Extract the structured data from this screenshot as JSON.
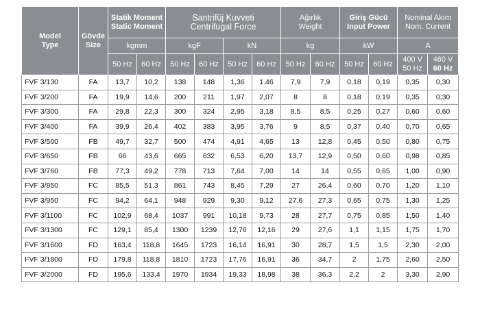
{
  "headers": {
    "model": [
      "Model",
      "Type"
    ],
    "body": [
      "Gövde",
      "Size"
    ],
    "static_moment": [
      "Statik Moment",
      "Static Moment"
    ],
    "centrifugal": [
      "Santrifüj Kuvveti",
      "Centrifugal  Force"
    ],
    "weight": [
      "Ağırlık",
      "Weight"
    ],
    "input_power": [
      "Giriş Gücü",
      "Input  Power"
    ],
    "nominal_current": [
      "Nominal Akım",
      "Nom. Current"
    ]
  },
  "units": [
    "kgmm",
    "kgF",
    "kN",
    "kg",
    "kW",
    "A"
  ],
  "freq": [
    "50 Hz",
    "60 Hz",
    "50 Hz",
    "60 Hz",
    "50 Hz",
    "60 Hz",
    "50 Hz",
    "60 Hz",
    "50 Hz",
    "60 Hz"
  ],
  "voltage": [
    [
      "400 V",
      "50 Hz"
    ],
    [
      "460 V",
      "60 Hz"
    ]
  ],
  "rows": [
    [
      "FVF 3/130",
      "FA",
      "13,7",
      "10,2",
      "138",
      "148",
      "1,36",
      "1.46",
      "7,9",
      "7,9",
      "0,18",
      "0,19",
      "0,35",
      "0,30"
    ],
    [
      "FVF 3/200",
      "FA",
      "19,9",
      "14,6",
      "200",
      "211",
      "1,97",
      "2,07",
      "8",
      "8",
      "0,18",
      "0,19",
      "0,35",
      "0,30"
    ],
    [
      "FVF 3/300",
      "FA",
      "29,8",
      "22,3",
      "300",
      "324",
      "2,95",
      "3,18",
      "8,5",
      "8,5",
      "0,25",
      "0,27",
      "0,60",
      "0,60"
    ],
    [
      "FVF 3/400",
      "FA",
      "39,9",
      "26,4",
      "402",
      "383",
      "3,95",
      "3,76",
      "9",
      "8,5",
      "0,37",
      "0,40",
      "0,70",
      "0,65"
    ],
    [
      "FVF 3/500",
      "FB",
      "49,7",
      "32,7",
      "500",
      "474",
      "4,91",
      "4,65",
      "13",
      "12,8",
      "0,45",
      "0,50",
      "0,80",
      "0,75"
    ],
    [
      "FVF 3/650",
      "FB",
      "66",
      "43,6",
      "665",
      "632",
      "6,53",
      "6,20",
      "13,7",
      "12,9",
      "0,50",
      "0,60",
      "0,98",
      "0,85"
    ],
    [
      "FVF 3/760",
      "FB",
      "77,3",
      "49,2",
      "778",
      "713",
      "7,64",
      "7,00",
      "14",
      "14",
      "0,55",
      "0,65",
      "1,00",
      "0,90"
    ],
    [
      "FVF 3/850",
      "FC",
      "85,5",
      "51,3",
      "861",
      "743",
      "8,45",
      "7,29",
      "27",
      "26,4",
      "0,60",
      "0,70",
      "1,20",
      "1,10"
    ],
    [
      "FVF 3/950",
      "FC",
      "94,2",
      "64,1",
      "948",
      "929",
      "9,30",
      "9,12",
      "27,6",
      "27,3",
      "0,65",
      "0,75",
      "1,30",
      "1,25"
    ],
    [
      "FVF 3/1100",
      "FC",
      "102,9",
      "68,4",
      "1037",
      "991",
      "10,18",
      "9,73",
      "28",
      "27,7",
      "0,75",
      "0,85",
      "1,50",
      "1,40"
    ],
    [
      "FVF 3/1300",
      "FC",
      "129,1",
      "85,4",
      "1300",
      "1239",
      "12,76",
      "12,16",
      "29",
      "27,6",
      "1,1",
      "1,15",
      "1,75",
      "1,70"
    ],
    [
      "FVF 3/1600",
      "FD",
      "163,4",
      "118,8",
      "1645",
      "1723",
      "16,14",
      "16,91",
      "30",
      "28,7",
      "1,5",
      "1,5",
      "2,30",
      "2,00"
    ],
    [
      "FVF 3/1800",
      "FD",
      "179,8",
      "118,8",
      "1810",
      "1723",
      "17,76",
      "16,91",
      "36",
      "34,7",
      "2",
      "1,75",
      "2,60",
      "2,50"
    ],
    [
      "FVF 3/2000",
      "FD",
      "195,6",
      "133,4",
      "1970",
      "1934",
      "19,33",
      "18,98",
      "38",
      "36,3",
      "2,2",
      "2",
      "3,30",
      "2,90"
    ]
  ]
}
